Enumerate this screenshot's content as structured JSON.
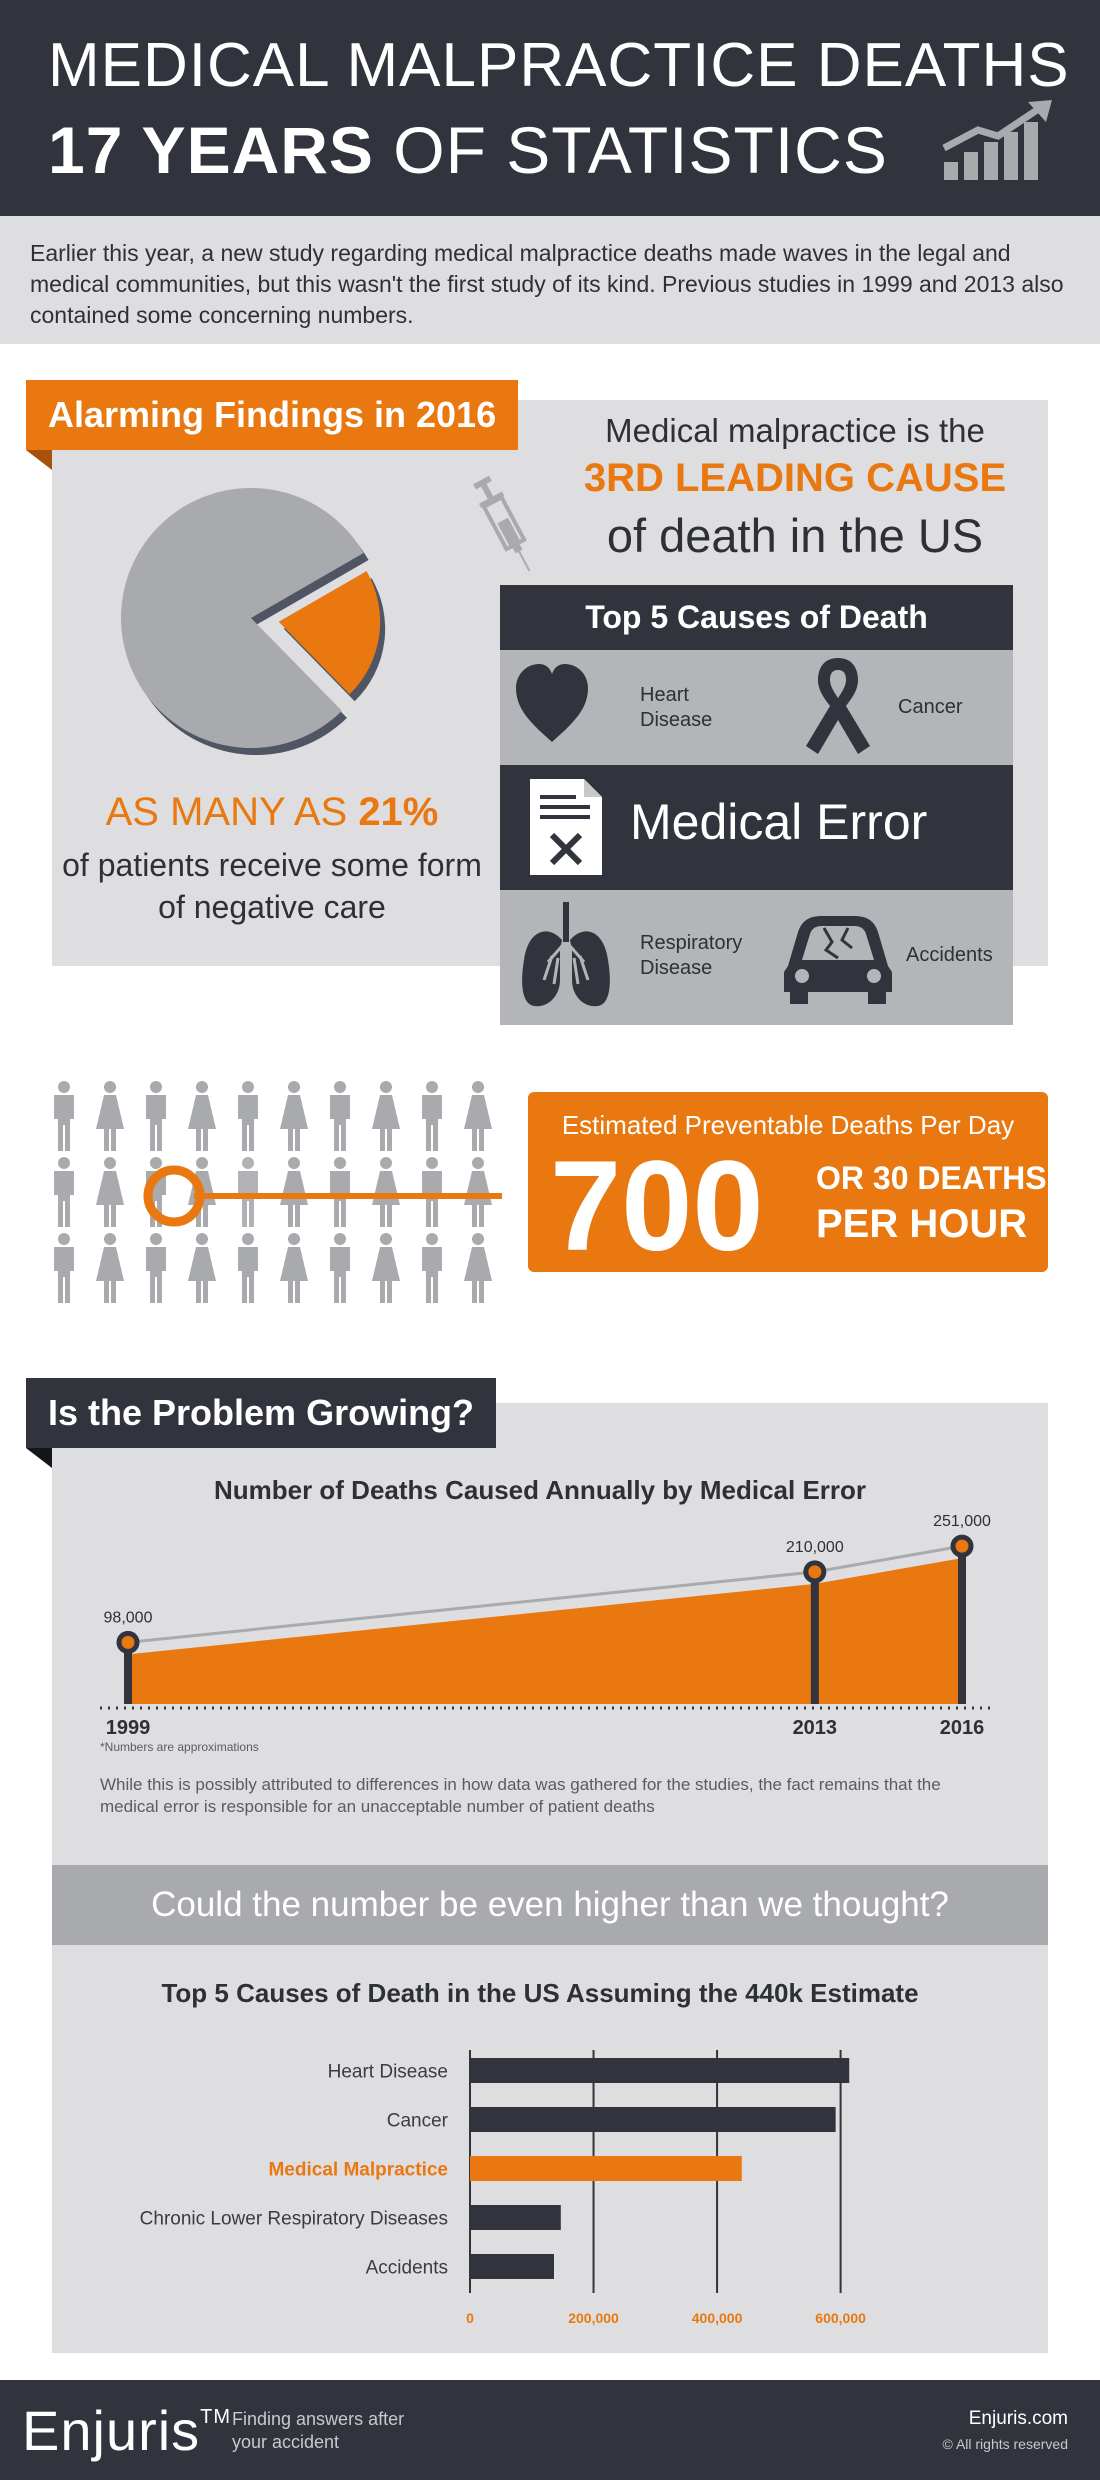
{
  "header": {
    "title_line1": "MEDICAL MALPRACTICE DEATHS",
    "title_line2_bold": "17 YEARS",
    "title_line2_rest": " OF STATISTICS",
    "icon": "rising-bar-chart-icon"
  },
  "intro": "Earlier this year, a new study regarding medical malpractice deaths made waves in the legal and medical communities, but this wasn't the first study of its kind. Previous studies in 1999 and 2013 also contained some concerning numbers.",
  "section1": {
    "banner": "Alarming Findings in 2016",
    "pie_percent": 21,
    "pct_prefix": "AS MANY AS ",
    "pct_value": "21%",
    "pct_caption": "of patients receive some form of negative care",
    "cause_line1": "Medical malpractice is the",
    "cause_line2": "3RD LEADING CAUSE",
    "cause_line3": "of death in the US",
    "top5": {
      "title": "Top 5 Causes of Death",
      "heart": "Heart Disease",
      "cancer": "Cancer",
      "medical_error": "Medical Error",
      "respiratory": "Respiratory Disease",
      "accidents": "Accidents"
    }
  },
  "deaths": {
    "title": "Estimated Preventable Deaths Per Day",
    "number": "700",
    "sub1": "OR 30 DEATHS",
    "sub2": "PER HOUR"
  },
  "section2": {
    "banner": "Is the Problem Growing?",
    "note": "*Numbers are approximations",
    "text": "While this is possibly attributed to differences in how data was gathered for the studies, the fact remains that the medical error is responsible for an unacceptable number of patient deaths",
    "higher_banner": "Could the number be even higher than we thought?"
  },
  "footer": {
    "brand": "Enjuris",
    "tm": "TM",
    "tagline": "Finding answers after your accident",
    "site": "Enjuris.com",
    "rights": "© All rights reserved"
  },
  "colors": {
    "orange": "#e8780f",
    "dark": "#31343d",
    "light_gray": "#dedee0",
    "mid_gray": "#a8aaae"
  },
  "chart_data": [
    {
      "type": "area",
      "title": "Number of Deaths Caused Annually by Medical Error",
      "x": [
        1999,
        2013,
        2016
      ],
      "x_labels": [
        "1999",
        "2013",
        "2016"
      ],
      "values": [
        98000,
        210000,
        251000
      ],
      "value_labels": [
        "98,000",
        "210,000",
        "251,000"
      ]
    },
    {
      "type": "bar",
      "orientation": "horizontal",
      "title": "Top 5 Causes of Death in the US Assuming the 440k Estimate",
      "categories": [
        "Heart Disease",
        "Cancer",
        "Medical Malpractice",
        "Chronic Lower Respiratory Diseases",
        "Accidents"
      ],
      "values": [
        614000,
        592000,
        440000,
        147000,
        136000
      ],
      "highlight": "Medical Malpractice",
      "xlim": [
        0,
        680000
      ],
      "ticks": [
        0,
        200000,
        400000,
        600000
      ],
      "tick_labels": [
        "0",
        "200,000",
        "400,000",
        "600,000"
      ]
    }
  ]
}
